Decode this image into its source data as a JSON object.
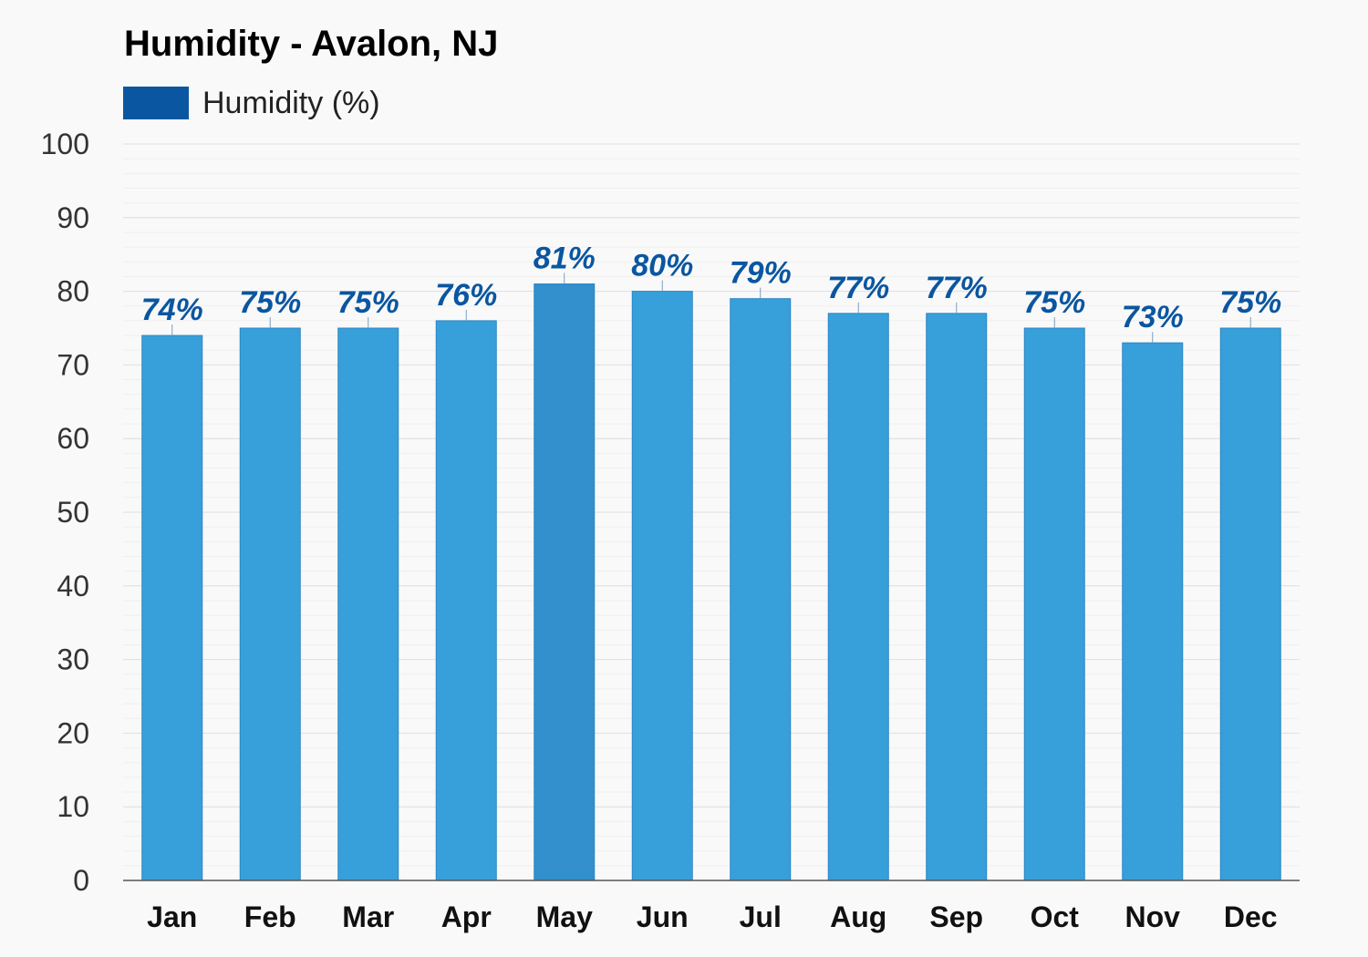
{
  "chart_data": {
    "type": "bar",
    "title": "Humidity - Avalon, NJ",
    "xlabel": "",
    "ylabel": "",
    "ylim": [
      0,
      100
    ],
    "yticks": [
      0,
      10,
      20,
      30,
      40,
      50,
      60,
      70,
      80,
      90,
      100
    ],
    "categories": [
      "Jan",
      "Feb",
      "Mar",
      "Apr",
      "May",
      "Jun",
      "Jul",
      "Aug",
      "Sep",
      "Oct",
      "Nov",
      "Dec"
    ],
    "series": [
      {
        "name": "Humidity (%)",
        "values": [
          74,
          75,
          75,
          76,
          81,
          80,
          79,
          77,
          77,
          75,
          73,
          75
        ],
        "data_labels": [
          "74%",
          "75%",
          "75%",
          "76%",
          "81%",
          "80%",
          "79%",
          "77%",
          "77%",
          "75%",
          "73%",
          "75%"
        ]
      }
    ],
    "highlighted_category": "May",
    "legend_position": "top-left",
    "grid": true
  },
  "colors": {
    "background": "#f9f9f9",
    "bar": "#37a0da",
    "bar_highlight": "#3390cc",
    "bar_border": "#2a86c4",
    "legend_swatch": "#0a56a0",
    "data_label": "#0a56a0",
    "grid": "#e4e4e4",
    "axis": "#555555"
  }
}
